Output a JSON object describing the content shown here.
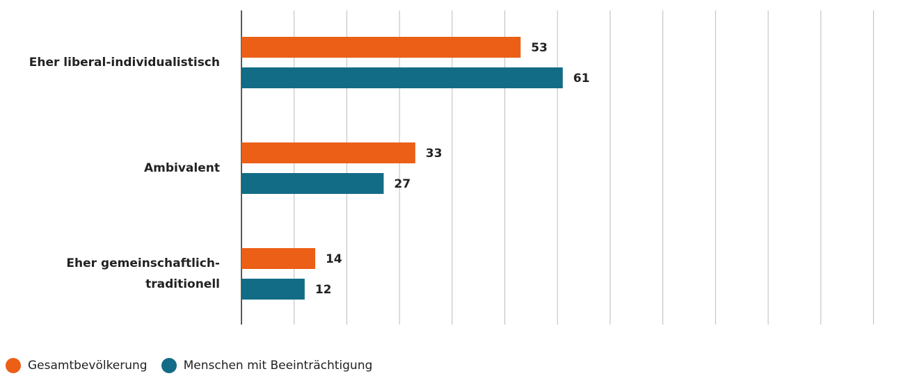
{
  "chart_data": {
    "type": "bar",
    "orientation": "horizontal",
    "categories": [
      "Eher liberal-individualistisch",
      "Ambivalent",
      "Eher gemeinschaftlich-traditionell"
    ],
    "series": [
      {
        "name": "Gesamtbevölkerung",
        "color": "#eb5f16",
        "values": [
          53,
          33,
          14
        ]
      },
      {
        "name": "Menschen mit Beeinträchtigung",
        "color": "#136c86",
        "values": [
          61,
          27,
          12
        ]
      }
    ],
    "xlim": [
      0,
      120
    ],
    "xticks": [
      0,
      10,
      20,
      30,
      40,
      50,
      60,
      70,
      80,
      90,
      100,
      110,
      120
    ],
    "grid": true,
    "legend": "bottom-left"
  }
}
